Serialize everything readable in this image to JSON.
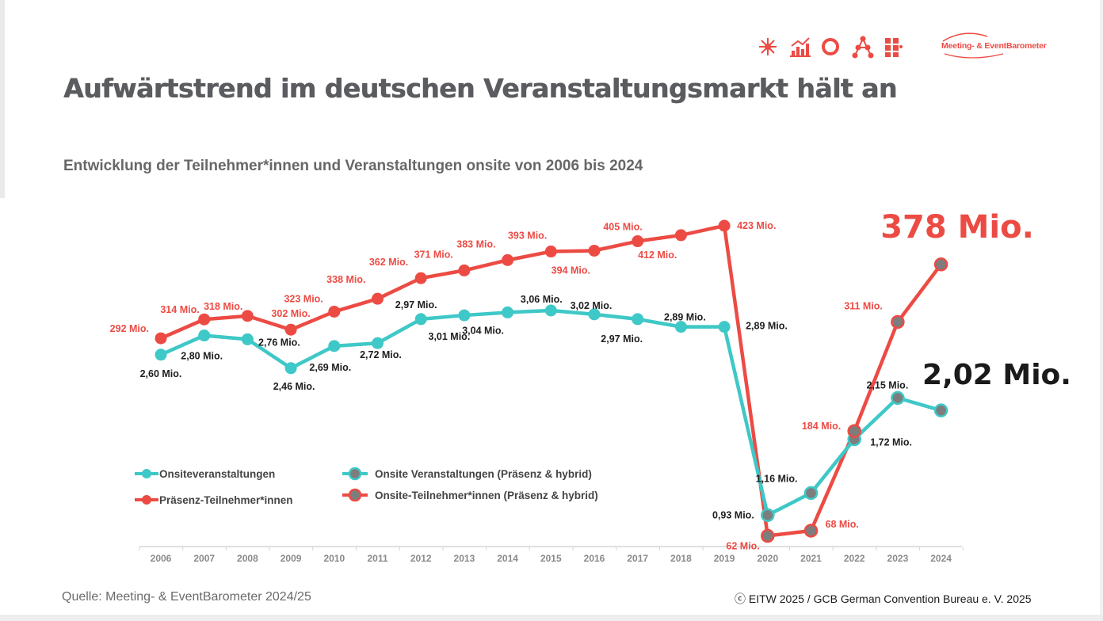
{
  "title": "Aufwärtstrend im deutschen Veranstaltungsmarkt hält an",
  "subtitle": "Entwicklung der Teilnehmer*innen und Veranstaltungen onsite von 2006 bis 2024",
  "source": "Quelle: Meeting- & EventBarometer 2024/25",
  "copyright": "ⓒ EITW 2025 / GCB German Convention Bureau e. V. 2025",
  "brand": {
    "name": "Meeting- & EventBarometer",
    "color": "#ec4b44"
  },
  "header_icons": [
    "sparkle-icon",
    "bar-chart-icon",
    "ring-icon",
    "network-icon",
    "grid-icon"
  ],
  "colors": {
    "red": "#ec4b44",
    "teal": "#3ec8c7",
    "gray_marker": "#7d7d7d",
    "text_dark": "#1e1e1e"
  },
  "chart_data": {
    "type": "line",
    "categories": [
      "2006",
      "2007",
      "2008",
      "2009",
      "2010",
      "2011",
      "2012",
      "2013",
      "2014",
      "2015",
      "2016",
      "2017",
      "2018",
      "2019",
      "2020",
      "2021",
      "2022",
      "2023",
      "2024"
    ],
    "title": "Entwicklung der Teilnehmer*innen und Veranstaltungen onsite von 2006 bis 2024",
    "series": [
      {
        "name": "Präsenz-Teilnehmer*innen",
        "color": "#ec4b44",
        "unit": "Mio.",
        "values": [
          292,
          314,
          318,
          302,
          323,
          338,
          362,
          371,
          383,
          393,
          394,
          405,
          412,
          423,
          null,
          null,
          null,
          null,
          null
        ],
        "labels": [
          "292 Mio.",
          "314 Mio.",
          "318 Mio.",
          "302 Mio.",
          "323 Mio.",
          "338 Mio.",
          "362 Mio.",
          "371 Mio.",
          "383 Mio.",
          "393 Mio.",
          "394 Mio.",
          "405 Mio.",
          "412 Mio.",
          "423 Mio.",
          "",
          "",
          "",
          "",
          ""
        ]
      },
      {
        "name": "Onsite-Teilnehmer*innen (Präsenz & hybrid)",
        "color": "#ec4b44",
        "marker": "#7d7d7d",
        "unit": "Mio.",
        "values": [
          null,
          null,
          null,
          null,
          null,
          null,
          null,
          null,
          null,
          null,
          null,
          null,
          null,
          null,
          62,
          68,
          184,
          311,
          378
        ],
        "labels": [
          "",
          "",
          "",
          "",
          "",
          "",
          "",
          "",
          "",
          "",
          "",
          "",
          "",
          "",
          "62 Mio.",
          "68 Mio.",
          "184 Mio.",
          "311 Mio.",
          ""
        ]
      },
      {
        "name": "Onsiteveranstaltungen",
        "color": "#3ec8c7",
        "unit": "Mio.",
        "values": [
          2.6,
          2.8,
          2.76,
          2.46,
          2.69,
          2.72,
          2.97,
          3.01,
          3.04,
          3.06,
          3.02,
          2.97,
          2.89,
          2.89,
          null,
          null,
          null,
          null,
          null
        ],
        "labels": [
          "2,60 Mio.",
          "2,80 Mio.",
          "2,76 Mio.",
          "2,46 Mio.",
          "2,69 Mio.",
          "2,72 Mio.",
          "2,97 Mio.",
          "3,01 Mio.",
          "3,04 Mio.",
          "3,06 Mio.",
          "3,02 Mio.",
          "2,97 Mio.",
          "2,89 Mio.",
          "2,89 Mio.",
          "",
          "",
          "",
          "",
          ""
        ]
      },
      {
        "name": "Onsite Veranstaltungen (Präsenz & hybrid)",
        "color": "#3ec8c7",
        "marker": "#7d7d7d",
        "unit": "Mio.",
        "values": [
          null,
          null,
          null,
          null,
          null,
          null,
          null,
          null,
          null,
          null,
          null,
          null,
          null,
          null,
          0.93,
          1.16,
          1.72,
          2.15,
          2.02
        ],
        "labels": [
          "",
          "",
          "",
          "",
          "",
          "",
          "",
          "",
          "",
          "",
          "",
          "",
          "",
          "",
          "0,93 Mio.",
          "1,16 Mio.",
          "1,72 Mio.",
          "2,15 Mio.",
          ""
        ]
      }
    ],
    "highlights": {
      "participants_2024": "378 Mio.",
      "events_2024": "2,02 Mio."
    },
    "legend_position": "bottom-left",
    "grid": false
  }
}
